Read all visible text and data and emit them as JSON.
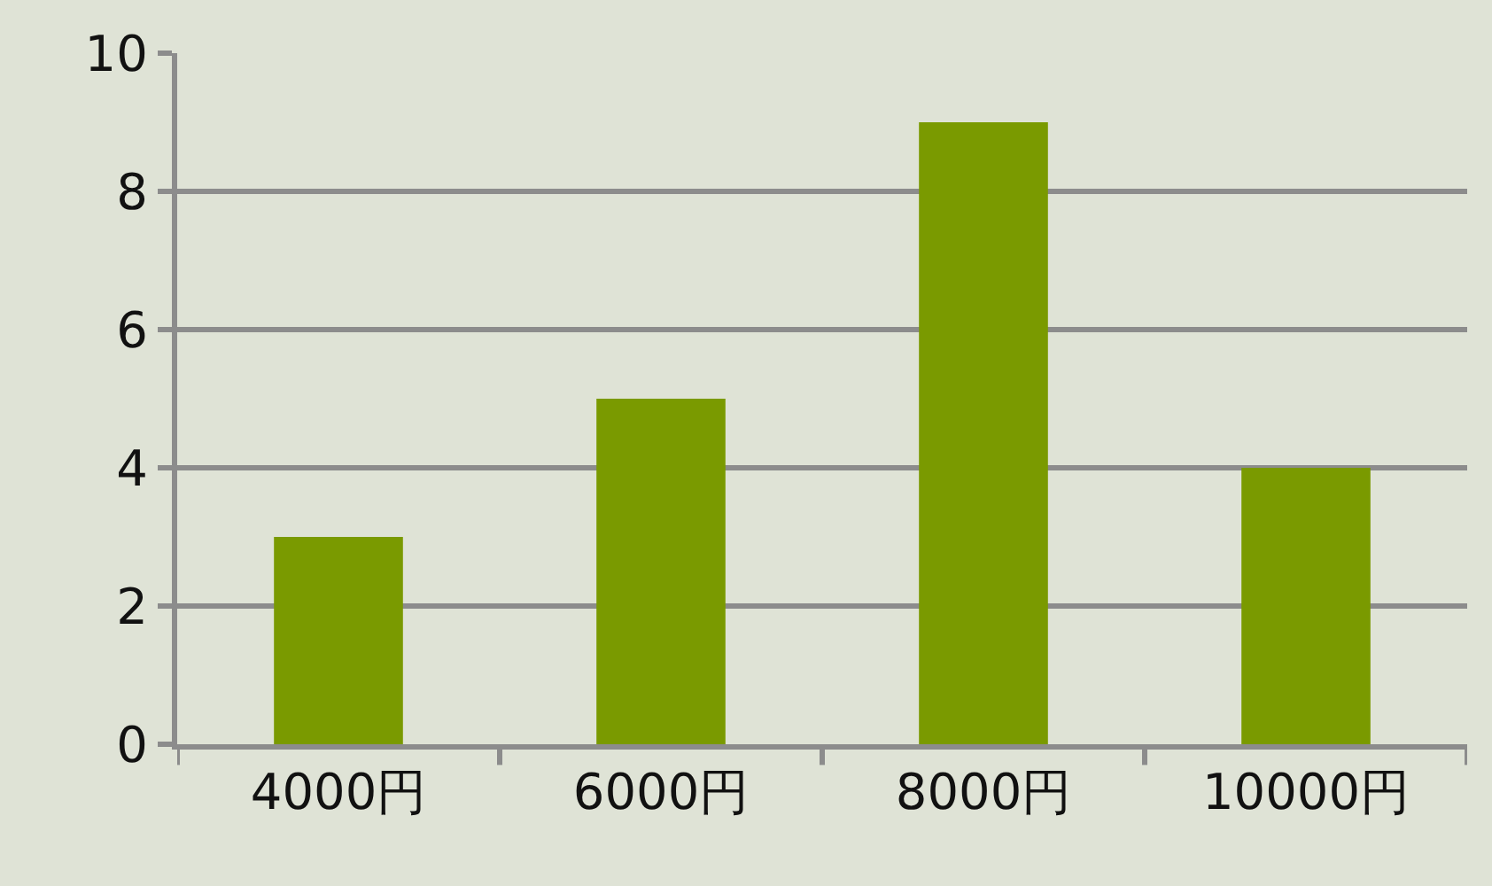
{
  "chart_data": {
    "type": "bar",
    "categories": [
      "4000円",
      "6000円",
      "8000円",
      "10000円"
    ],
    "values": [
      3,
      5,
      9,
      4
    ],
    "color": "#7a9a00",
    "ylim": [
      0,
      10
    ],
    "yticks": [
      0,
      2,
      4,
      6,
      8,
      10
    ],
    "grid": "y",
    "legend": false
  }
}
